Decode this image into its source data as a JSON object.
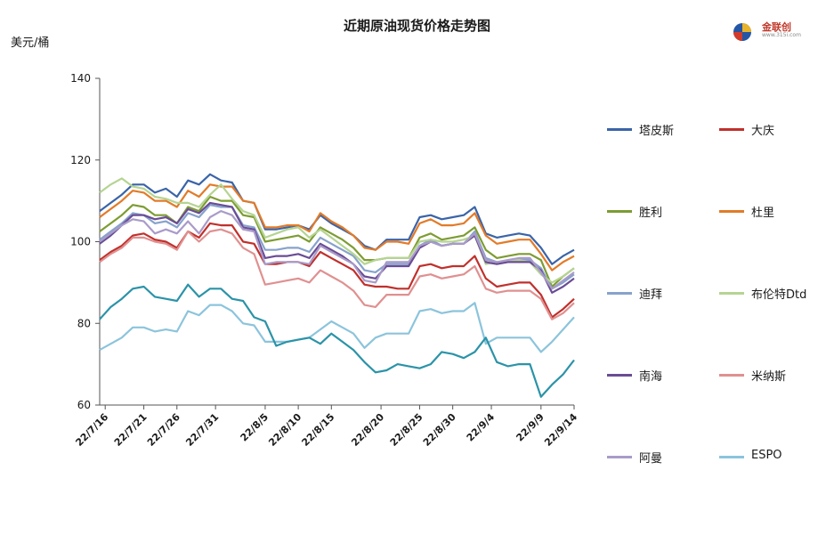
{
  "chart_data": {
    "type": "line",
    "title": "近期原油现货价格走势图",
    "ylabel": "美元/桶",
    "ylim": [
      60,
      140
    ],
    "yticks": [
      60,
      80,
      100,
      120,
      140
    ],
    "grid": false,
    "legend_position": "right",
    "x": [
      "22/7/15",
      "22/7/18",
      "22/7/19",
      "22/7/20",
      "22/7/21",
      "22/7/22",
      "22/7/25",
      "22/7/26",
      "22/7/27",
      "22/7/28",
      "22/7/29",
      "22/8/1",
      "22/8/2",
      "22/8/3",
      "22/8/4",
      "22/8/5",
      "22/8/8",
      "22/8/9",
      "22/8/10",
      "22/8/11",
      "22/8/12",
      "22/8/15",
      "22/8/16",
      "22/8/17",
      "22/8/18",
      "22/8/19",
      "22/8/22",
      "22/8/23",
      "22/8/24",
      "22/8/25",
      "22/8/26",
      "22/8/29",
      "22/8/30",
      "22/8/31",
      "22/9/1",
      "22/9/2",
      "22/9/5",
      "22/9/6",
      "22/9/7",
      "22/9/8",
      "22/9/9",
      "22/9/12",
      "22/9/13",
      "22/9/14"
    ],
    "xtick_labels": [
      "22/7/16",
      "22/7/21",
      "22/7/26",
      "22/7/31",
      "22/8/5",
      "22/8/10",
      "22/8/15",
      "22/8/20",
      "22/8/25",
      "22/8/30",
      "22/9/4",
      "22/9/9",
      "22/9/14"
    ],
    "xtick_dates": [
      "22/7/16",
      "22/7/21",
      "22/7/26",
      "22/7/31",
      "22/8/5",
      "22/8/10",
      "22/8/15",
      "22/8/20",
      "22/8/25",
      "22/8/30",
      "22/9/4",
      "22/9/9",
      "22/9/14"
    ],
    "series": [
      {
        "name": "塔皮斯",
        "color": "#3a64a8",
        "values": [
          107.5,
          109.5,
          111.5,
          114,
          114,
          112,
          113,
          111,
          115,
          114,
          116.5,
          115,
          114.5,
          110,
          109.5,
          103,
          103,
          103.5,
          104,
          103,
          106.5,
          104.5,
          103,
          101.5,
          99,
          98,
          100.5,
          100.5,
          100.5,
          106,
          106.5,
          105.5,
          106,
          106.5,
          108.5,
          102,
          101,
          101.5,
          102,
          101.5,
          98.5,
          94.5,
          96.5,
          98
        ]
      },
      {
        "name": "大庆",
        "color": "#c0302c",
        "values": [
          95.5,
          97.5,
          99,
          101.5,
          102,
          100.5,
          100,
          98.5,
          102.5,
          101,
          104.5,
          104,
          104,
          100,
          99.5,
          94.5,
          94.5,
          95,
          95,
          94,
          97.5,
          96,
          94.5,
          93,
          89.5,
          89,
          89,
          88.5,
          88.5,
          94,
          94.5,
          93.5,
          94,
          94,
          96.5,
          91,
          89,
          89.5,
          90,
          90,
          87,
          81.5,
          83.5,
          86
        ]
      },
      {
        "name": "胜利",
        "color": "#7d9c32",
        "values": [
          102.5,
          104.5,
          106.5,
          109,
          108.5,
          106.5,
          106.5,
          104.5,
          108.5,
          107.5,
          111,
          110,
          110,
          106.5,
          106,
          100,
          100.5,
          101,
          101.5,
          100,
          103.5,
          102,
          100.5,
          98.5,
          95.5,
          95.5,
          96,
          96,
          96,
          101,
          102,
          100.5,
          101,
          101.5,
          103.5,
          98,
          96,
          96.5,
          97,
          97,
          95.5,
          89,
          91.5,
          93.5
        ]
      },
      {
        "name": "杜里",
        "color": "#e27b28",
        "values": [
          106,
          108,
          110,
          112.5,
          112,
          110,
          110,
          108.5,
          112.5,
          111,
          114,
          113.5,
          113.5,
          110,
          109.5,
          103.5,
          103.5,
          104,
          104,
          102.5,
          107,
          105,
          103.5,
          101.5,
          98.5,
          98,
          100,
          100,
          99.5,
          104.5,
          105.5,
          104,
          104,
          104.5,
          107,
          101.5,
          99.5,
          100,
          100.5,
          100.5,
          97,
          93,
          95,
          96.5
        ]
      },
      {
        "name": "迪拜",
        "color": "#87a2cc",
        "values": [
          100.5,
          102.5,
          104.5,
          107,
          106.5,
          104.5,
          105,
          103.5,
          107,
          106,
          109,
          108.5,
          108.5,
          104,
          103.5,
          98,
          98,
          98.5,
          98.5,
          97.5,
          101,
          99.5,
          98,
          96.5,
          93,
          92.5,
          94.5,
          94.5,
          94.5,
          99,
          100.5,
          99,
          99.5,
          99.5,
          102.5,
          96,
          95,
          95,
          95.5,
          95.5,
          93.5,
          88.5,
          90,
          92
        ]
      },
      {
        "name": "布伦特Dtd",
        "color": "#b5d492",
        "values": [
          112,
          114,
          115.5,
          113.5,
          113,
          111,
          110.5,
          109.5,
          109.5,
          108.5,
          111.5,
          114,
          110.5,
          107.5,
          106.5,
          101,
          102,
          103,
          103.5,
          101,
          103,
          101,
          99,
          97,
          94.5,
          95.5,
          96,
          96,
          96,
          100,
          100.5,
          100,
          100,
          100.5,
          101.5,
          94.5,
          95,
          95,
          95.5,
          95,
          92,
          90,
          91.5,
          93.5
        ]
      },
      {
        "name": "南海",
        "color": "#6a4c95",
        "values": [
          99.5,
          101.5,
          104,
          106.5,
          106.5,
          105.5,
          106,
          104.5,
          108,
          107,
          109.5,
          109,
          108.5,
          103.5,
          103,
          96,
          96.5,
          96.5,
          97,
          96,
          99.5,
          98,
          96.5,
          94.5,
          91.5,
          91,
          94,
          94,
          94,
          98.5,
          100,
          99,
          99.5,
          99.5,
          101.5,
          95,
          94.5,
          95,
          95,
          95,
          93,
          87.5,
          89,
          91
        ]
      },
      {
        "name": "米纳斯",
        "color": "#e09090",
        "values": [
          95,
          97,
          98.5,
          101,
          101,
          100,
          99.5,
          98,
          102.5,
          100,
          102.5,
          103,
          102,
          98.5,
          97,
          89.5,
          90,
          90.5,
          91,
          90,
          93,
          91.5,
          90,
          88,
          84.5,
          84,
          87,
          87,
          87,
          91.5,
          92,
          91,
          91.5,
          92,
          94,
          88.5,
          87.5,
          88,
          88,
          88,
          86,
          81,
          82.5,
          85
        ]
      },
      {
        "name": "阿曼",
        "color": "#a99bc9",
        "values": [
          100,
          102,
          104,
          105.5,
          105,
          102,
          103,
          102,
          105,
          102,
          106,
          107.5,
          106.5,
          103,
          102.5,
          94.5,
          95,
          95,
          95,
          94.5,
          99,
          97.5,
          96,
          94.5,
          90.5,
          90,
          95,
          95,
          95,
          99,
          100,
          99,
          99.5,
          99.5,
          102,
          95.5,
          95,
          95.5,
          96,
          96,
          92.5,
          88.5,
          90.5,
          92.5
        ]
      },
      {
        "name": "ESPO",
        "color": "#8cc4dc",
        "values": [
          73.5,
          75,
          76.5,
          79,
          79,
          78,
          78.5,
          78,
          83,
          82,
          84.5,
          84.5,
          83,
          80,
          79.5,
          75.5,
          75.5,
          75.5,
          76,
          76.5,
          78.5,
          80.5,
          79,
          77.5,
          74,
          76.5,
          77.5,
          77.5,
          77.5,
          83,
          83.5,
          82.5,
          83,
          83,
          85,
          75,
          76.5,
          76.5,
          76.5,
          76.5,
          73,
          75.5,
          78.5,
          81.5
        ]
      },
      {
        "name": "",
        "color": "#2b93a8",
        "values": [
          81,
          84,
          86,
          88.5,
          89,
          86.5,
          86,
          85.5,
          89.5,
          86.5,
          88.5,
          88.5,
          86,
          85.5,
          81.5,
          80.5,
          74.5,
          75.5,
          76,
          76.5,
          75,
          77.5,
          75.5,
          73.5,
          70.5,
          68,
          68.5,
          70,
          69.5,
          69,
          70,
          73,
          72.5,
          71.5,
          73,
          76.5,
          70.5,
          69.5,
          70,
          70,
          62,
          65,
          67.5,
          71
        ]
      }
    ],
    "chart_title_text": "近期原油现货价格走势图",
    "unit_text": "美元/桶",
    "logo_text": "金联创",
    "logo_subtext": "www.315i.com"
  }
}
